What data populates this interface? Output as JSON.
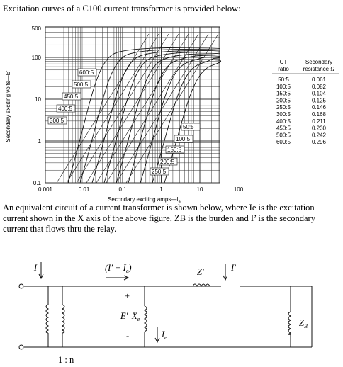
{
  "intro": "Excitation curves of a C100 current transformer is provided below:",
  "chart": {
    "ylabel": "Secondary exciting volts—E'",
    "xlabel": "Secondary exciting amps—I",
    "xlabel_sub": "e",
    "yticks": [
      "500",
      "100",
      "10",
      "1",
      "0.1"
    ],
    "xticks": [
      "0.001",
      "0.01",
      "0.1",
      "1",
      "10",
      "100"
    ],
    "left_labels": [
      "600:5",
      "500:5",
      "450:5",
      "400:5",
      "300:5"
    ],
    "right_labels": [
      "50:5",
      "100:5",
      "150:5",
      "200:5",
      "250:5"
    ]
  },
  "table": {
    "headers": [
      [
        "CT",
        "ratio"
      ],
      [
        "Secondary",
        "resistance Ω"
      ]
    ],
    "rows": [
      [
        "50:5",
        "0.061"
      ],
      [
        "100:5",
        "0.082"
      ],
      [
        "150:5",
        "0.104"
      ],
      [
        "200:5",
        "0.125"
      ],
      [
        "250:5",
        "0.146"
      ],
      [
        "300:5",
        "0.168"
      ],
      [
        "400:5",
        "0.211"
      ],
      [
        "450:5",
        "0.230"
      ],
      [
        "500:5",
        "0.242"
      ],
      [
        "600:5",
        "0.296"
      ]
    ]
  },
  "paragraph": [
    "An equivalent circuit of a current transformer is shown below, where Ie is the excitation",
    "current shown in the X axis of the above figure, ZB is the burden and I’ is the secondary",
    "current that flows thru the relay."
  ],
  "circuit": {
    "i_left": "I",
    "i_sum": "(I' + I",
    "i_sum_sub": "e",
    "i_sum_end": ")",
    "plus": "+",
    "minus": "-",
    "e": "E'",
    "x": "X",
    "x_sub": "e",
    "ie": "I",
    "ie_sub": "e",
    "z": "Z'",
    "i_right": "I'",
    "zb": "Z",
    "zb_sub": "B",
    "ratio": "1 : n"
  }
}
